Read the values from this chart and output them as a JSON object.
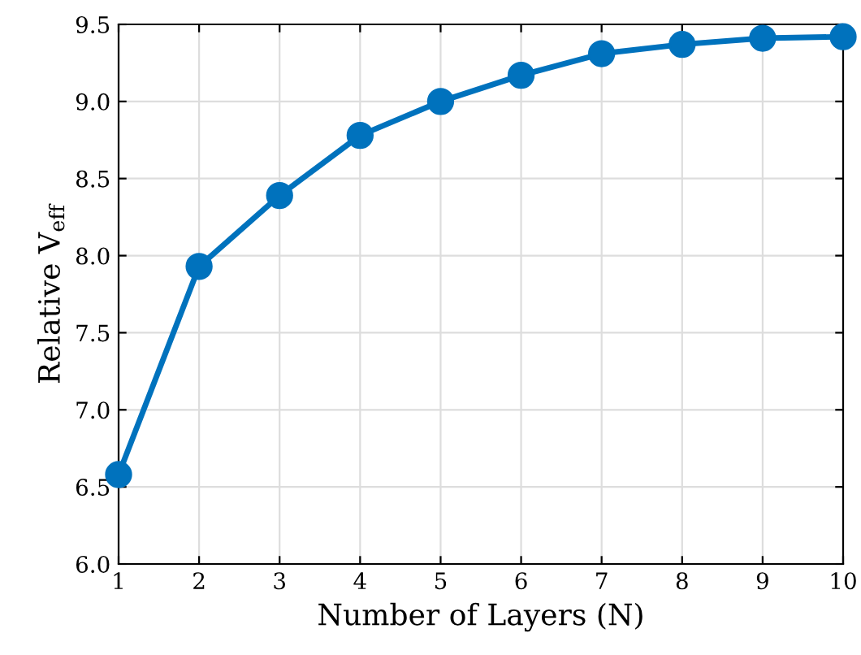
{
  "chart_data": {
    "type": "line",
    "xlabel": "Number of Layers (N)",
    "ylabel": "Relative V$_{eff}$",
    "x": [
      1,
      2,
      3,
      4,
      5,
      6,
      7,
      8,
      9,
      10
    ],
    "series": [
      {
        "color": "#0072bd",
        "values": [
          6.58,
          7.93,
          8.39,
          8.78,
          9.0,
          9.17,
          9.31,
          9.37,
          9.41,
          9.42
        ]
      }
    ],
    "xlim": [
      1,
      10
    ],
    "xticks": [
      1,
      2,
      3,
      4,
      5,
      6,
      7,
      8,
      9,
      10
    ],
    "ylim": [
      6.0,
      9.5
    ],
    "yticks": [
      {
        "value": 6,
        "label": "6.0"
      },
      6.5,
      {
        "value": 7,
        "label": "7.0"
      },
      7.5,
      {
        "value": 8,
        "label": "8.0"
      },
      8.5,
      {
        "value": 9,
        "label": "9.0"
      },
      9.5
    ],
    "grid": true,
    "marker": "circle",
    "line_style": "solid"
  }
}
